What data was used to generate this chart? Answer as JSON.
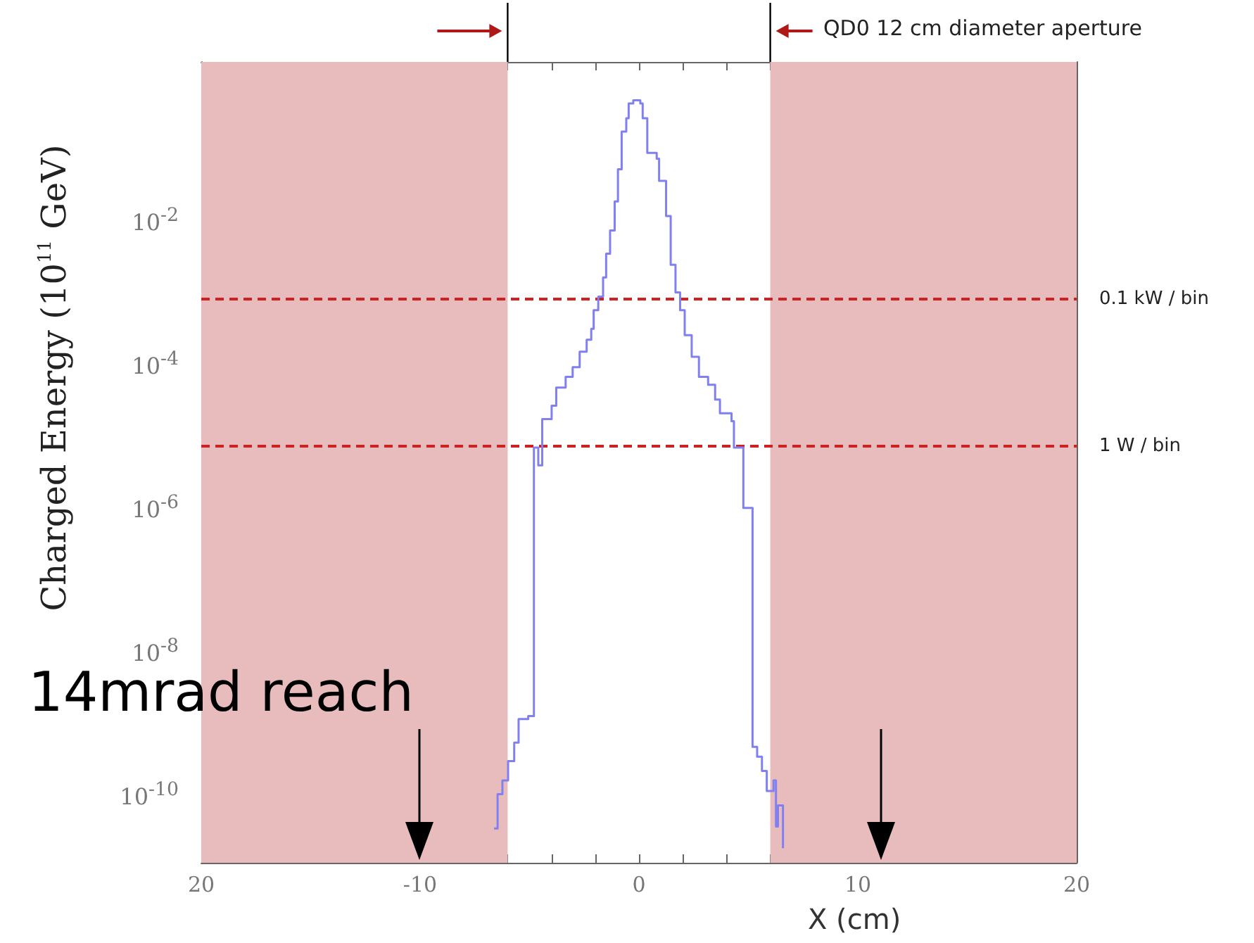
{
  "chart_data": {
    "type": "step",
    "xlabel": "X (cm)",
    "ylabel": "Charged Energy (10$^{11}$ GeV)",
    "x": [
      -6.62,
      -6.46,
      -6.24,
      -5.98,
      -5.7,
      -5.5,
      -5.06,
      -4.8,
      -4.6,
      -4.42,
      -3.99,
      -3.78,
      -3.35,
      -3.03,
      -2.71,
      -2.39,
      -2.18,
      -2.07,
      -1.86,
      -1.64,
      -1.5,
      -1.32,
      -1.11,
      -0.96,
      -0.79,
      -0.58,
      -0.47,
      -0.26,
      0.06,
      0.17,
      0.38,
      0.81,
      0.92,
      1.24,
      1.45,
      1.67,
      1.88,
      2.09,
      2.41,
      2.74,
      3.16,
      3.48,
      3.7,
      3.9,
      4.23,
      4.34,
      4.77,
      5.19,
      5.4,
      5.62,
      5.84,
      6.15,
      6.26,
      6.35,
      6.58
    ],
    "series": [
      {
        "color": "#8080f0",
        "values": [
          3e-11,
          9e-11,
          1.4e-10,
          2.6e-10,
          4.7e-10,
          1e-09,
          1.1e-09,
          6e-06,
          3.4e-06,
          1.5e-05,
          2.3e-05,
          4.1e-05,
          5.8e-05,
          7.9e-05,
          0.00013,
          0.00019,
          0.00027,
          0.00049,
          0.00076,
          0.0014,
          0.003,
          0.0063,
          0.016,
          0.045,
          0.15,
          0.23,
          0.37,
          0.41,
          0.37,
          0.23,
          0.076,
          0.063,
          0.031,
          0.01,
          0.0021,
          0.00087,
          0.00049,
          0.00022,
          0.00011,
          5.8e-05,
          4.5e-05,
          2.8e-05,
          1.8e-05,
          1.8e-05,
          1.4e-05,
          6e-06,
          8.7e-07,
          4.1e-10,
          3e-10,
          1.9e-10,
          1e-10,
          1.4e-10,
          3.2e-11,
          6.3e-11,
          1.6e-11
        ]
      }
    ],
    "log": "y",
    "xlim": [
      -20,
      20
    ],
    "xticks": [
      {
        "value": -20,
        "label": "20"
      },
      {
        "value": -18,
        "label": null
      },
      {
        "value": -16,
        "label": null
      },
      {
        "value": -14,
        "label": null
      },
      {
        "value": -12,
        "label": null
      },
      -10,
      {
        "value": -8,
        "label": null
      },
      {
        "value": -6,
        "label": null
      },
      {
        "value": -4,
        "label": null
      },
      {
        "value": -2,
        "label": null
      },
      0,
      {
        "value": 2,
        "label": null
      },
      {
        "value": 4,
        "label": null
      },
      {
        "value": 6,
        "label": null
      },
      {
        "value": 8,
        "label": null
      },
      10,
      {
        "value": 12,
        "label": null
      },
      {
        "value": 14,
        "label": null
      },
      {
        "value": 16,
        "label": null
      },
      {
        "value": 18,
        "label": null
      },
      20
    ],
    "ylim": [
      1e-11,
      1.4
    ],
    "yticks": [
      {
        "value": 1e-10,
        "label": "10$^{-10}$"
      },
      {
        "value": 1e-09,
        "label": null
      },
      {
        "value": 1e-08,
        "label": "10$^{-8}$"
      },
      {
        "value": 1e-07,
        "label": null
      },
      {
        "value": 1e-06,
        "label": "10$^{-6}$"
      },
      {
        "value": 1e-05,
        "label": null
      },
      {
        "value": 0.0001,
        "label": "10$^{-4}$"
      },
      {
        "value": 0.001,
        "label": null
      },
      {
        "value": 0.01,
        "label": "10$^{-2}$"
      },
      {
        "value": 0.1,
        "label": null
      }
    ],
    "bands": [
      {
        "axis": "x",
        "from": -20,
        "to": -6,
        "color": "#e8bcbc"
      },
      {
        "axis": "x",
        "from": 6,
        "to": 20,
        "color": "#e8bcbc"
      }
    ],
    "ref_lines": [
      {
        "axis": "y",
        "value": 0.0007,
        "label": "0.1 kW / bin",
        "color": "#cc2222",
        "line_style": "dashed"
      },
      {
        "axis": "y",
        "value": 6.3e-06,
        "label": "1 W / bin",
        "color": "#cc2222",
        "line_style": "dashed"
      }
    ],
    "annotations": [
      "QD0 12 cm diameter aperture",
      "14mrad reach"
    ],
    "grid": false,
    "marker": "none",
    "line_style": "solid"
  }
}
